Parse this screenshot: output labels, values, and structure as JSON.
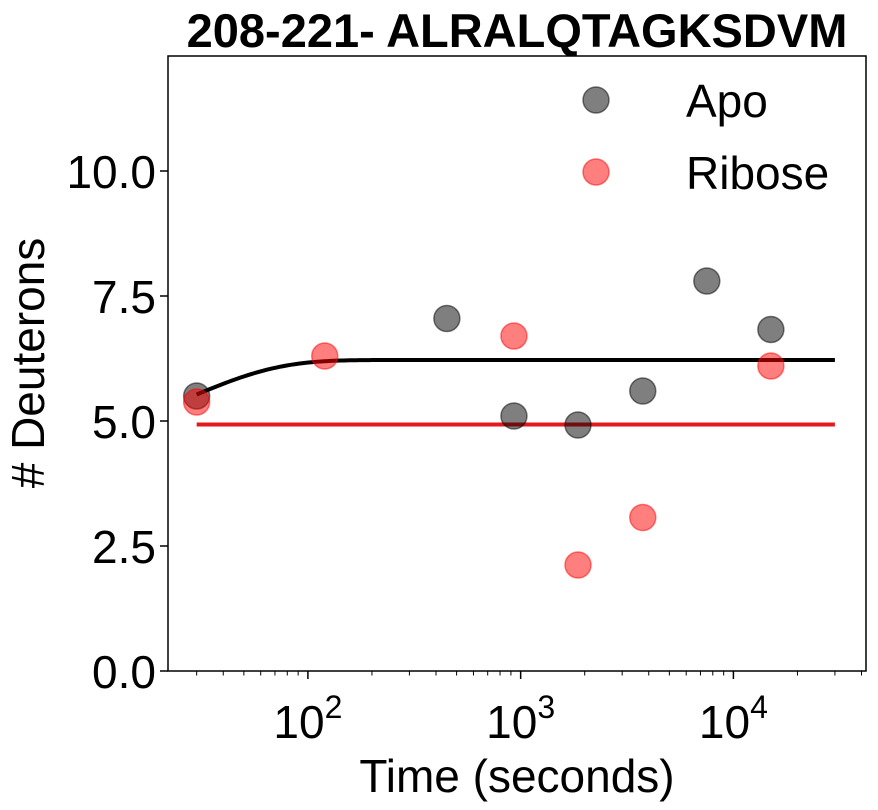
{
  "chart_data": {
    "type": "scatter",
    "title": "208-221- ALRALQTAGKSDVM",
    "xlabel": "Time (seconds)",
    "ylabel": "# Deuterons",
    "xscale": "log",
    "xlim": [
      22,
      42000
    ],
    "ylim": [
      0,
      12.3
    ],
    "yticks": [
      0.0,
      2.5,
      5.0,
      7.5,
      10.0
    ],
    "ytick_labels": [
      "0.0",
      "2.5",
      "5.0",
      "7.5",
      "10.0"
    ],
    "xticks": [
      100,
      1000,
      10000
    ],
    "xtick_labels": [
      {
        "base": "10",
        "exp": "2"
      },
      {
        "base": "10",
        "exp": "3"
      },
      {
        "base": "10",
        "exp": "4"
      }
    ],
    "legend_position": "top-right",
    "series": [
      {
        "name": "Apo",
        "color": "#000000",
        "points": [
          [
            30,
            5.5
          ],
          [
            450,
            7.05
          ],
          [
            930,
            5.1
          ],
          [
            1860,
            4.92
          ],
          [
            3750,
            5.6
          ],
          [
            7500,
            7.8
          ],
          [
            15000,
            6.83
          ]
        ],
        "fit": {
          "type": "exponential",
          "plateau": 6.22,
          "start": 5.53,
          "tau": 27,
          "x_range": [
            30,
            30000
          ]
        }
      },
      {
        "name": "Ribose",
        "color": "#ff0000",
        "points": [
          [
            30,
            5.38
          ],
          [
            120,
            6.3
          ],
          [
            930,
            6.7
          ],
          [
            1860,
            2.12
          ],
          [
            3750,
            3.07
          ],
          [
            15000,
            6.1
          ]
        ],
        "fit": {
          "type": "constant",
          "value": 4.93,
          "color": "#e31a1c",
          "x_range": [
            30,
            30000
          ]
        }
      }
    ]
  }
}
